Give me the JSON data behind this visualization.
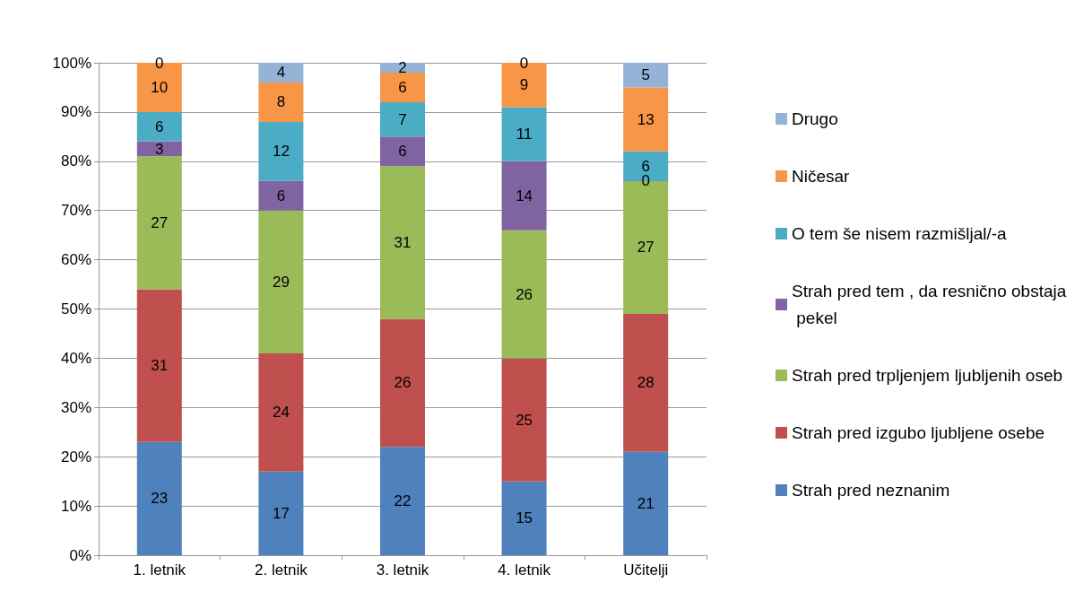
{
  "chart_data": {
    "type": "bar",
    "stacked": true,
    "data_labels": true,
    "grid": "y",
    "legend": "right",
    "categories": [
      "1. letnik",
      "2. letnik",
      "3. letnik",
      "4. letnik",
      "Učitelji"
    ],
    "ylim": [
      0,
      100
    ],
    "yticks": [
      {
        "value": 0,
        "label": "0%"
      },
      {
        "value": 10,
        "label": "10%"
      },
      {
        "value": 20,
        "label": "20%"
      },
      {
        "value": 30,
        "label": "30%"
      },
      {
        "value": 40,
        "label": "40%"
      },
      {
        "value": 50,
        "label": "50%"
      },
      {
        "value": 60,
        "label": "60%"
      },
      {
        "value": 70,
        "label": "70%"
      },
      {
        "value": 80,
        "label": "80%"
      },
      {
        "value": 90,
        "label": "90%"
      },
      {
        "value": 100,
        "label": "100%"
      }
    ],
    "series": [
      {
        "name": "Strah pred neznanim",
        "color": "#4f81bd",
        "values": [
          23,
          17,
          22,
          15,
          21
        ]
      },
      {
        "name": "Strah pred izgubo ljubljene osebe",
        "color": "#c0504d",
        "values": [
          31,
          24,
          26,
          25,
          28
        ]
      },
      {
        "name": "Strah pred trpljenjem ljubljenih oseb",
        "color": "#9bbb59",
        "values": [
          27,
          29,
          31,
          26,
          27
        ]
      },
      {
        "name": "Strah pred tem , da resnično obstaja pekel",
        "color": "#8064a2",
        "values": [
          3,
          6,
          6,
          14,
          0
        ]
      },
      {
        "name": "O tem še nisem razmišljal/-a",
        "color": "#4bacc6",
        "values": [
          6,
          12,
          7,
          11,
          6
        ]
      },
      {
        "name": "Ničesar",
        "color": "#f79646",
        "values": [
          10,
          8,
          6,
          9,
          13
        ]
      },
      {
        "name": "Drugo",
        "color": "#95b3d7",
        "values": [
          0,
          4,
          2,
          0,
          5
        ]
      }
    ]
  }
}
